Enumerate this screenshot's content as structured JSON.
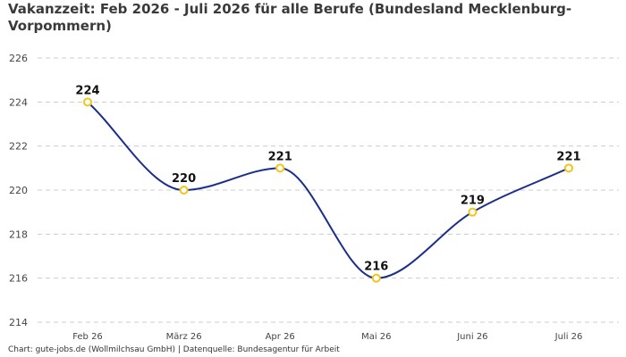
{
  "chart_data": {
    "type": "line",
    "title": "Vakanzzeit: Feb 2026 - Juli 2026 für alle Berufe (Bundesland Mecklenburg-Vorpommern)",
    "categories": [
      "Feb 26",
      "März 26",
      "Apr 26",
      "Mai 26",
      "Juni 26",
      "Juli 26"
    ],
    "series": [
      {
        "values": [
          224,
          220,
          221,
          216,
          219,
          221
        ]
      }
    ],
    "ylim": [
      214,
      226
    ],
    "yticks": [
      214,
      216,
      218,
      220,
      222,
      224,
      226
    ],
    "grid": true,
    "line_color": "#1a2e8a",
    "marker_color": "#f5c518",
    "gridline_color": "#cccccc"
  },
  "footer": {
    "text": "Chart: gute-jobs.de (Wollmilchsau GmbH) | Datenquelle: Bundesagentur für Arbeit"
  }
}
